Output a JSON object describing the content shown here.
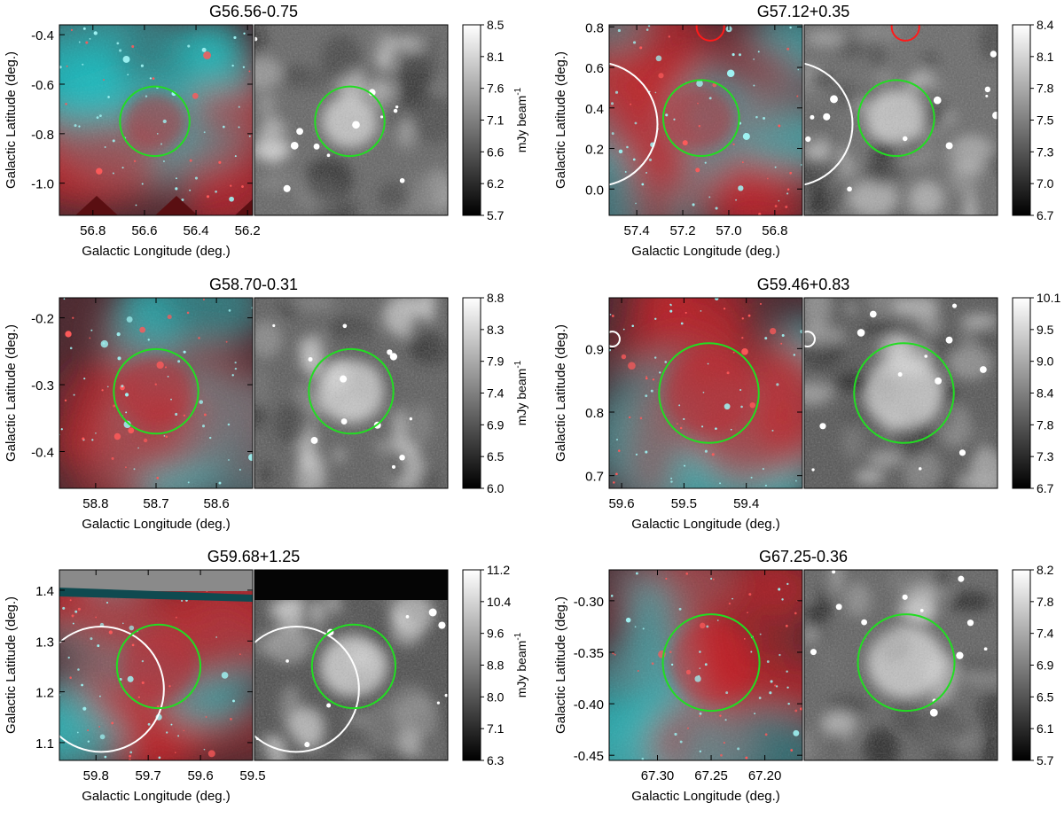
{
  "figure": {
    "colorbar_unit": "mJy beam",
    "colorbar_unit_superscript": "-1",
    "xlabel": "Galactic Longitude (deg.)",
    "ylabel": "Galactic Latitude (deg.)",
    "colors": {
      "rgb_cyan": "#22bcbf",
      "rgb_red": "#c0242a",
      "candidate_circle": "#22dd22",
      "other_circle_white": "#ffffff",
      "other_circle_red": "#ff1a1a"
    }
  },
  "panels": [
    {
      "title": "G56.56-0.75",
      "x_ticks": [
        "56.8",
        "56.6",
        "56.4",
        "56.2"
      ],
      "x_tick_values": [
        56.8,
        56.6,
        56.4,
        56.2
      ],
      "xlim": [
        56.93,
        56.18
      ],
      "y_ticks": [
        "-0.4",
        "-0.6",
        "-0.8",
        "-1.0"
      ],
      "y_tick_values": [
        -0.4,
        -0.6,
        -0.8,
        -1.0
      ],
      "ylim": [
        -1.13,
        -0.36
      ],
      "colorbar_ticks": [
        "8.5",
        "8.1",
        "7.6",
        "7.1",
        "6.6",
        "6.2",
        "5.7"
      ],
      "candidate_circle": {
        "l": 56.56,
        "b": -0.75,
        "r_deg": 0.135
      },
      "other_circles": [],
      "features": "tiling",
      "gray_brightness": 0.75
    },
    {
      "title": "G57.12+0.35",
      "x_ticks": [
        "57.4",
        "57.2",
        "57.0",
        "56.8"
      ],
      "x_tick_values": [
        57.4,
        57.2,
        57.0,
        56.8
      ],
      "xlim": [
        57.52,
        56.68
      ],
      "y_ticks": [
        "0.8",
        "0.6",
        "0.4",
        "0.2",
        "0.0"
      ],
      "y_tick_values": [
        0.8,
        0.6,
        0.4,
        0.2,
        0.0
      ],
      "ylim": [
        -0.13,
        0.81
      ],
      "colorbar_ticks": [
        "8.4",
        "8.1",
        "7.8",
        "7.5",
        "7.3",
        "7.0",
        "6.7"
      ],
      "candidate_circle": {
        "l": 57.12,
        "b": 0.35,
        "r_deg": 0.165
      },
      "other_circles": [
        {
          "l": 57.58,
          "b": 0.32,
          "r_deg": 0.27,
          "color": "white"
        },
        {
          "l": 57.08,
          "b": 0.8,
          "r_deg": 0.06,
          "color": "red"
        }
      ],
      "features": "",
      "gray_brightness": 0.8
    },
    {
      "title": "G58.70-0.31",
      "x_ticks": [
        "58.8",
        "58.7",
        "58.6"
      ],
      "x_tick_values": [
        58.8,
        58.7,
        58.6
      ],
      "xlim": [
        58.86,
        58.54
      ],
      "y_ticks": [
        "-0.2",
        "-0.3",
        "-0.4"
      ],
      "y_tick_values": [
        -0.2,
        -0.3,
        -0.4
      ],
      "ylim": [
        -0.455,
        -0.17
      ],
      "colorbar_ticks": [
        "8.8",
        "8.3",
        "7.9",
        "7.4",
        "6.9",
        "6.5",
        "6.0"
      ],
      "candidate_circle": {
        "l": 58.7,
        "b": -0.31,
        "r_deg": 0.07
      },
      "other_circles": [],
      "features": "",
      "gray_brightness": 0.65
    },
    {
      "title": "G59.46+0.83",
      "x_ticks": [
        "59.6",
        "59.5",
        "59.4"
      ],
      "x_tick_values": [
        59.6,
        59.5,
        59.4
      ],
      "xlim": [
        59.62,
        59.31
      ],
      "y_ticks": [
        "0.9",
        "0.8",
        "0.7"
      ],
      "y_tick_values": [
        0.9,
        0.8,
        0.7
      ],
      "ylim": [
        0.68,
        0.98
      ],
      "colorbar_ticks": [
        "10.1",
        "9.5",
        "9.0",
        "8.4",
        "7.8",
        "7.3",
        "6.7"
      ],
      "candidate_circle": {
        "l": 59.46,
        "b": 0.83,
        "r_deg": 0.08
      },
      "other_circles": [
        {
          "l": 59.615,
          "b": 0.915,
          "r_deg": 0.012,
          "color": "white"
        }
      ],
      "features": "",
      "gray_brightness": 0.55
    },
    {
      "title": "G59.68+1.25",
      "x_ticks": [
        "59.8",
        "59.7",
        "59.6",
        "59.5"
      ],
      "x_tick_values": [
        59.8,
        59.7,
        59.6,
        59.5
      ],
      "xlim": [
        59.87,
        59.5
      ],
      "y_ticks": [
        "1.4",
        "1.3",
        "1.2",
        "1.1"
      ],
      "y_tick_values": [
        1.4,
        1.3,
        1.2,
        1.1
      ],
      "ylim": [
        1.065,
        1.44
      ],
      "colorbar_ticks": [
        "11.2",
        "10.4",
        "9.6",
        "8.8",
        "8.0",
        "7.1",
        "6.3"
      ],
      "candidate_circle": {
        "l": 59.68,
        "b": 1.25,
        "r_deg": 0.08
      },
      "other_circles": [
        {
          "l": 59.79,
          "b": 1.205,
          "r_deg": 0.12,
          "color": "white"
        }
      ],
      "features": "top-strip",
      "gray_brightness": 0.45
    },
    {
      "title": "G67.25-0.36",
      "x_ticks": [
        "67.30",
        "67.25",
        "67.20"
      ],
      "x_tick_values": [
        67.3,
        67.25,
        67.2
      ],
      "xlim": [
        67.345,
        67.165
      ],
      "y_ticks": [
        "-0.30",
        "-0.35",
        "-0.40",
        "-0.45"
      ],
      "y_tick_values": [
        -0.3,
        -0.35,
        -0.4,
        -0.45
      ],
      "ylim": [
        -0.455,
        -0.27
      ],
      "colorbar_ticks": [
        "8.2",
        "7.8",
        "7.4",
        "6.9",
        "6.5",
        "6.1",
        "5.7"
      ],
      "candidate_circle": {
        "l": 67.25,
        "b": -0.36,
        "r_deg": 0.045
      },
      "other_circles": [],
      "features": "smooth",
      "gray_brightness": 0.7
    }
  ]
}
